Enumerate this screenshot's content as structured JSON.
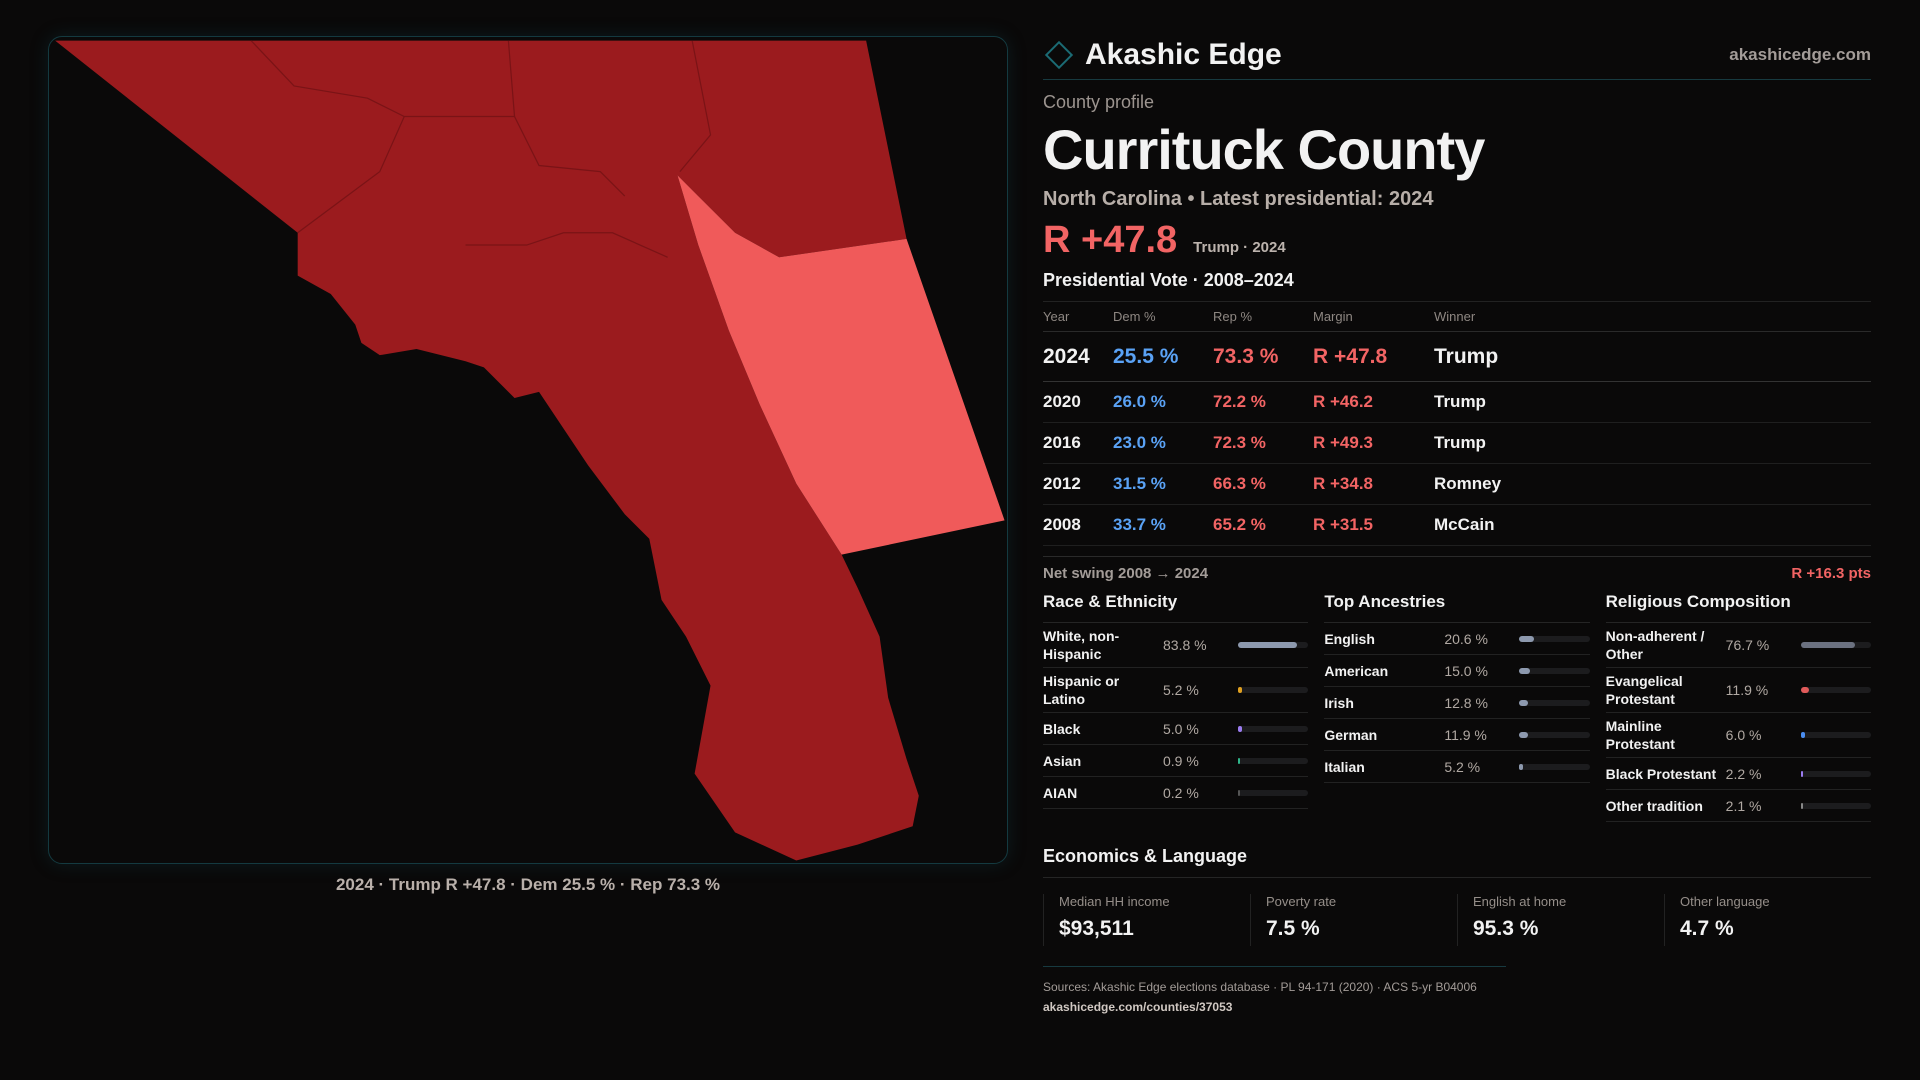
{
  "map": {
    "caption": "2024 · Trump R +47.8 · Dem 25.5 % · Rep 73.3 %",
    "colors": {
      "safe_r": "#9b1b1e",
      "lean_r": "#f05a5a"
    }
  },
  "brand": {
    "name": "Akashic Edge",
    "site": "akashicedge.com",
    "icon": "diamond-icon"
  },
  "profile": {
    "kicker": "County profile",
    "title": "Currituck County",
    "subtitle": "North Carolina • Latest presidential: 2024",
    "margin": "R +47.8",
    "margin_note": "Trump · 2024"
  },
  "votes": {
    "title": "Presidential Vote · 2008–2024",
    "headers": [
      "Year",
      "Dem %",
      "Rep %",
      "Margin",
      "Winner"
    ],
    "rows": [
      [
        "2024",
        "25.5 %",
        "73.3 %",
        "R +47.8",
        "Trump"
      ],
      [
        "2020",
        "26.0 %",
        "72.2 %",
        "R +46.2",
        "Trump"
      ],
      [
        "2016",
        "23.0 %",
        "72.3 %",
        "R +49.3",
        "Trump"
      ],
      [
        "2012",
        "31.5 %",
        "66.3 %",
        "R +34.8",
        "Romney"
      ],
      [
        "2008",
        "33.7 %",
        "65.2 %",
        "R +31.5",
        "McCain"
      ]
    ],
    "swing_label": "Net swing 2008 → 2024",
    "swing_value": "R +16.3 pts"
  },
  "race": {
    "title": "Race & Ethnicity",
    "items": [
      {
        "label": "White, non-Hispanic",
        "value": "83.8 %",
        "pct": 83.8,
        "color": "#8d99ae"
      },
      {
        "label": "Hispanic or Latino",
        "value": "5.2 %",
        "pct": 5.2,
        "color": "#e0a020"
      },
      {
        "label": "Black",
        "value": "5.0 %",
        "pct": 5.0,
        "color": "#9b7cf0"
      },
      {
        "label": "Asian",
        "value": "0.9 %",
        "pct": 0.9,
        "color": "#2fb58a"
      },
      {
        "label": "AIAN",
        "value": "0.2 %",
        "pct": 0.2,
        "color": "#555"
      }
    ]
  },
  "ancestry": {
    "title": "Top Ancestries",
    "items": [
      {
        "label": "English",
        "value": "20.6 %",
        "pct": 20.6,
        "color": "#8d99ae"
      },
      {
        "label": "American",
        "value": "15.0 %",
        "pct": 15.0,
        "color": "#8d99ae"
      },
      {
        "label": "Irish",
        "value": "12.8 %",
        "pct": 12.8,
        "color": "#8d99ae"
      },
      {
        "label": "German",
        "value": "11.9 %",
        "pct": 11.9,
        "color": "#8d99ae"
      },
      {
        "label": "Italian",
        "value": "5.2 %",
        "pct": 5.2,
        "color": "#8d99ae"
      }
    ]
  },
  "religion": {
    "title": "Religious Composition",
    "items": [
      {
        "label": "Non-adherent / Other",
        "value": "76.7 %",
        "pct": 76.7,
        "color": "#6b7180"
      },
      {
        "label": "Evangelical Protestant",
        "value": "11.9 %",
        "pct": 11.9,
        "color": "#e05a5a"
      },
      {
        "label": "Mainline Protestant",
        "value": "6.0 %",
        "pct": 6.0,
        "color": "#4a8df0"
      },
      {
        "label": "Black Protestant",
        "value": "2.2 %",
        "pct": 2.2,
        "color": "#9b7cf0"
      },
      {
        "label": "Other tradition",
        "value": "2.1 %",
        "pct": 2.1,
        "color": "#888"
      }
    ]
  },
  "economics": {
    "title": "Economics & Language",
    "cards": [
      {
        "label": "Median HH income",
        "value": "$93,511"
      },
      {
        "label": "Poverty rate",
        "value": "7.5 %"
      },
      {
        "label": "English at home",
        "value": "95.3 %"
      },
      {
        "label": "Other language",
        "value": "4.7 %"
      }
    ]
  },
  "footer": {
    "sources": "Sources: Akashic Edge elections database · PL 94-171 (2020) · ACS 5-yr B04006",
    "url": "akashicedge.com/counties/37053"
  }
}
